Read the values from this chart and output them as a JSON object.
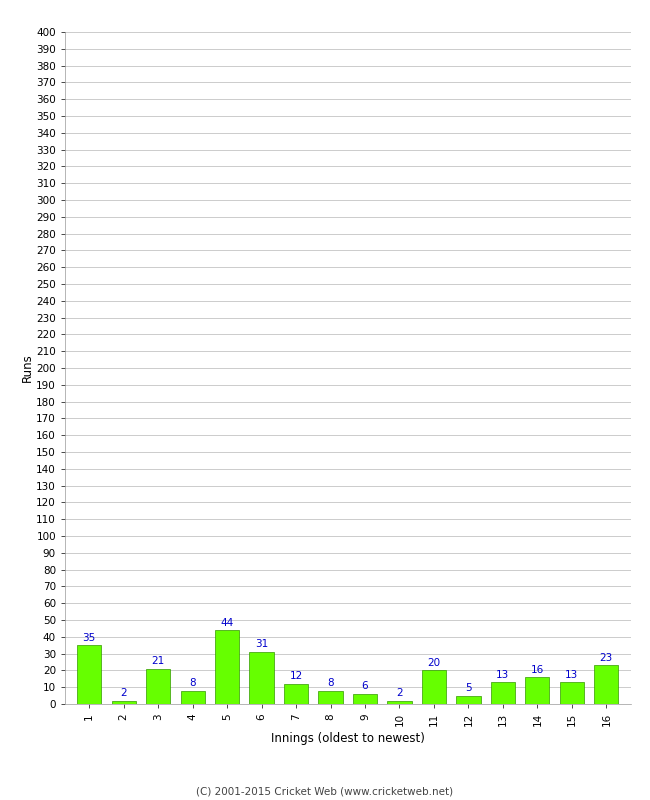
{
  "innings": [
    1,
    2,
    3,
    4,
    5,
    6,
    7,
    8,
    9,
    10,
    11,
    12,
    13,
    14,
    15,
    16
  ],
  "runs": [
    35,
    2,
    21,
    8,
    44,
    31,
    12,
    8,
    6,
    2,
    20,
    5,
    13,
    16,
    13,
    23
  ],
  "bar_color": "#66ff00",
  "bar_edge_color": "#339900",
  "label_color": "#0000cc",
  "xlabel": "Innings (oldest to newest)",
  "ylabel": "Runs",
  "ylim_min": 0,
  "ylim_max": 400,
  "ytick_step": 10,
  "background_color": "#ffffff",
  "grid_color": "#cccccc",
  "footer": "(C) 2001-2015 Cricket Web (www.cricketweb.net)"
}
